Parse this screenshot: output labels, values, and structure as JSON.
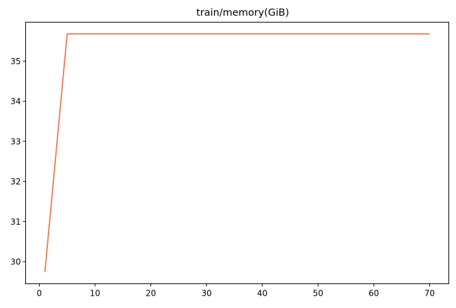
{
  "chart_data": {
    "type": "line",
    "title": "train/memory(GiB)",
    "xlabel": "",
    "ylabel": "",
    "xlim": [
      -2.45,
      73.45
    ],
    "ylim": [
      29.45,
      35.97
    ],
    "x_ticks": [
      0,
      10,
      20,
      30,
      40,
      50,
      60,
      70
    ],
    "y_ticks": [
      30,
      31,
      32,
      33,
      34,
      35
    ],
    "grid": false,
    "legend": "none",
    "series": [
      {
        "color": "#f07650",
        "x": [
          1,
          5,
          10,
          20,
          30,
          40,
          50,
          60,
          70
        ],
        "y": [
          29.74,
          35.68,
          35.68,
          35.68,
          35.68,
          35.68,
          35.68,
          35.68,
          35.68
        ]
      }
    ]
  }
}
